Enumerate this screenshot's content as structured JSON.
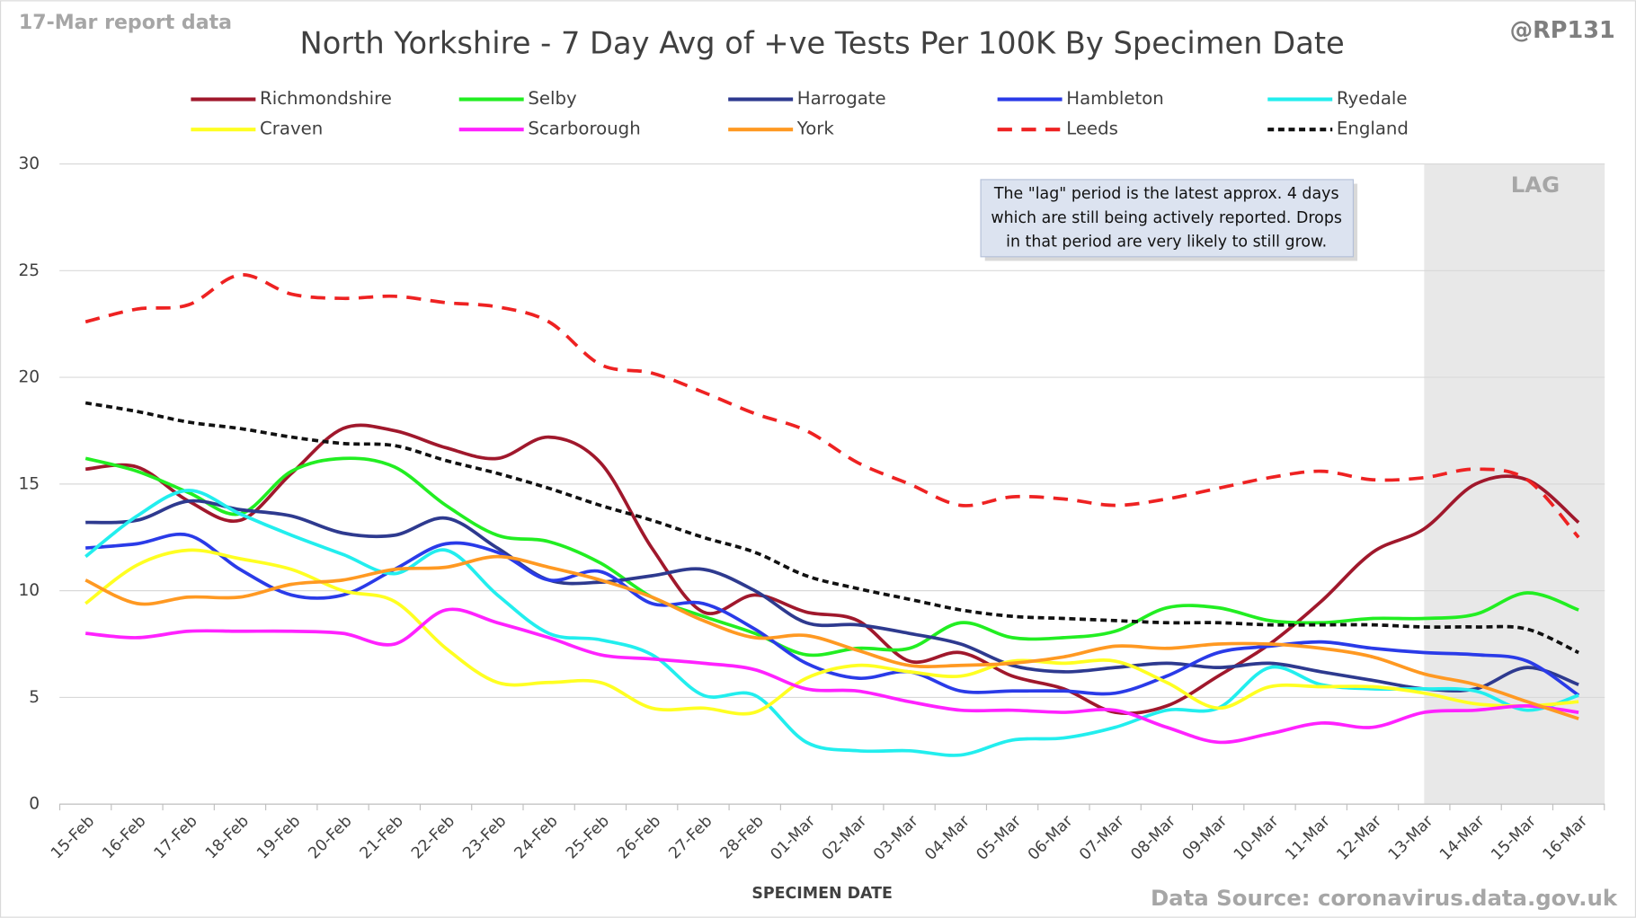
{
  "chart_data": {
    "type": "line",
    "title": "North Yorkshire - 7 Day Avg of +ve Tests Per 100K By Specimen Date",
    "subtitle": "17-Mar report data",
    "author": "@RP131",
    "source": "Data Source: coronavirus.data.gov.uk",
    "x_label": "SPECIMEN DATE",
    "annotation": [
      "The \"lag\" period is the latest approx. 4 days",
      "which are still being actively reported.  Drops",
      "in that period are very likely to still grow."
    ],
    "lag_region": {
      "label": "LAG",
      "from": "13-Mar"
    },
    "categories": [
      "15-Feb",
      "16-Feb",
      "17-Feb",
      "18-Feb",
      "19-Feb",
      "20-Feb",
      "21-Feb",
      "22-Feb",
      "23-Feb",
      "24-Feb",
      "25-Feb",
      "26-Feb",
      "27-Feb",
      "28-Feb",
      "01-Mar",
      "02-Mar",
      "03-Mar",
      "04-Mar",
      "05-Mar",
      "06-Mar",
      "07-Mar",
      "08-Mar",
      "09-Mar",
      "10-Mar",
      "11-Mar",
      "12-Mar",
      "13-Mar",
      "14-Mar",
      "15-Mar",
      "16-Mar"
    ],
    "ylim": [
      0,
      30
    ],
    "yticks": [
      0,
      5,
      10,
      15,
      20,
      25,
      30
    ],
    "grid": true,
    "series": [
      {
        "name": "Richmondshire",
        "color": "#a0182c",
        "dashed": false,
        "values": [
          15.7,
          15.8,
          14.2,
          13.3,
          15.5,
          17.6,
          17.5,
          16.7,
          16.2,
          17.2,
          16.0,
          12.0,
          9.0,
          9.8,
          9.0,
          8.6,
          6.7,
          7.1,
          6.0,
          5.4,
          4.3,
          4.6,
          6.0,
          7.5,
          9.5,
          11.8,
          12.9,
          15.0,
          15.2,
          13.2
        ]
      },
      {
        "name": "Selby",
        "color": "#22ee22",
        "dashed": false,
        "values": [
          16.2,
          15.6,
          14.6,
          13.6,
          15.6,
          16.2,
          15.8,
          14.0,
          12.6,
          12.3,
          11.3,
          9.7,
          8.8,
          8.0,
          7.0,
          7.3,
          7.3,
          8.5,
          7.8,
          7.8,
          8.1,
          9.2,
          9.2,
          8.6,
          8.5,
          8.7,
          8.7,
          8.9,
          9.9,
          9.1
        ]
      },
      {
        "name": "Harrogate",
        "color": "#2e3a8f",
        "dashed": false,
        "values": [
          13.2,
          13.3,
          14.2,
          13.8,
          13.5,
          12.7,
          12.6,
          13.4,
          12.0,
          10.5,
          10.4,
          10.7,
          11.0,
          10.0,
          8.5,
          8.4,
          8.0,
          7.5,
          6.5,
          6.2,
          6.4,
          6.6,
          6.4,
          6.6,
          6.2,
          5.8,
          5.4,
          5.4,
          6.4,
          5.6
        ]
      },
      {
        "name": "Hambleton",
        "color": "#2a3be8",
        "dashed": false,
        "values": [
          12.0,
          12.2,
          12.6,
          11.0,
          9.8,
          9.8,
          11.0,
          12.2,
          11.8,
          10.5,
          10.9,
          9.4,
          9.4,
          8.2,
          6.6,
          5.9,
          6.2,
          5.3,
          5.3,
          5.3,
          5.2,
          6.0,
          7.1,
          7.4,
          7.6,
          7.3,
          7.1,
          7.0,
          6.7,
          5.1
        ]
      },
      {
        "name": "Ryedale",
        "color": "#22eeee",
        "dashed": false,
        "values": [
          11.6,
          13.5,
          14.7,
          13.6,
          12.6,
          11.7,
          10.8,
          11.9,
          9.8,
          8.0,
          7.7,
          7.0,
          5.1,
          5.1,
          2.9,
          2.5,
          2.5,
          2.3,
          3.0,
          3.1,
          3.6,
          4.4,
          4.5,
          6.4,
          5.6,
          5.4,
          5.4,
          5.3,
          4.4,
          5.1
        ]
      },
      {
        "name": "Craven",
        "color": "#ffff22",
        "dashed": false,
        "values": [
          9.4,
          11.2,
          11.9,
          11.5,
          11.0,
          10.0,
          9.5,
          7.3,
          5.7,
          5.7,
          5.7,
          4.5,
          4.5,
          4.3,
          5.9,
          6.5,
          6.2,
          6.0,
          6.7,
          6.6,
          6.7,
          5.7,
          4.5,
          5.5,
          5.5,
          5.5,
          5.2,
          4.7,
          4.6,
          4.8
        ]
      },
      {
        "name": "Scarborough",
        "color": "#ff22ff",
        "dashed": false,
        "values": [
          8.0,
          7.8,
          8.1,
          8.1,
          8.1,
          8.0,
          7.5,
          9.1,
          8.5,
          7.8,
          7.0,
          6.8,
          6.6,
          6.3,
          5.4,
          5.3,
          4.8,
          4.4,
          4.4,
          4.3,
          4.4,
          3.6,
          2.9,
          3.3,
          3.8,
          3.6,
          4.3,
          4.4,
          4.6,
          4.3
        ]
      },
      {
        "name": "York",
        "color": "#ff9922",
        "dashed": false,
        "values": [
          10.5,
          9.4,
          9.7,
          9.7,
          10.3,
          10.5,
          11.0,
          11.1,
          11.6,
          11.1,
          10.5,
          9.7,
          8.6,
          7.8,
          7.9,
          7.2,
          6.5,
          6.5,
          6.6,
          6.9,
          7.4,
          7.3,
          7.5,
          7.5,
          7.3,
          6.9,
          6.1,
          5.6,
          4.8,
          4.0
        ]
      },
      {
        "name": "Leeds",
        "color": "#ee2222",
        "dashed": true,
        "values": [
          22.6,
          23.2,
          23.4,
          24.8,
          23.9,
          23.7,
          23.8,
          23.5,
          23.3,
          22.6,
          20.6,
          20.2,
          19.3,
          18.3,
          17.5,
          16.0,
          15.0,
          14.0,
          14.4,
          14.3,
          14.0,
          14.3,
          14.8,
          15.3,
          15.6,
          15.2,
          15.3,
          15.7,
          15.2,
          12.5
        ]
      },
      {
        "name": "England",
        "color": "#111111",
        "dashed": true,
        "values": [
          18.8,
          18.4,
          17.9,
          17.6,
          17.2,
          16.9,
          16.8,
          16.1,
          15.5,
          14.8,
          14.0,
          13.3,
          12.5,
          11.8,
          10.7,
          10.1,
          9.6,
          9.1,
          8.8,
          8.7,
          8.6,
          8.5,
          8.5,
          8.4,
          8.4,
          8.4,
          8.3,
          8.3,
          8.2,
          7.1
        ]
      }
    ]
  }
}
